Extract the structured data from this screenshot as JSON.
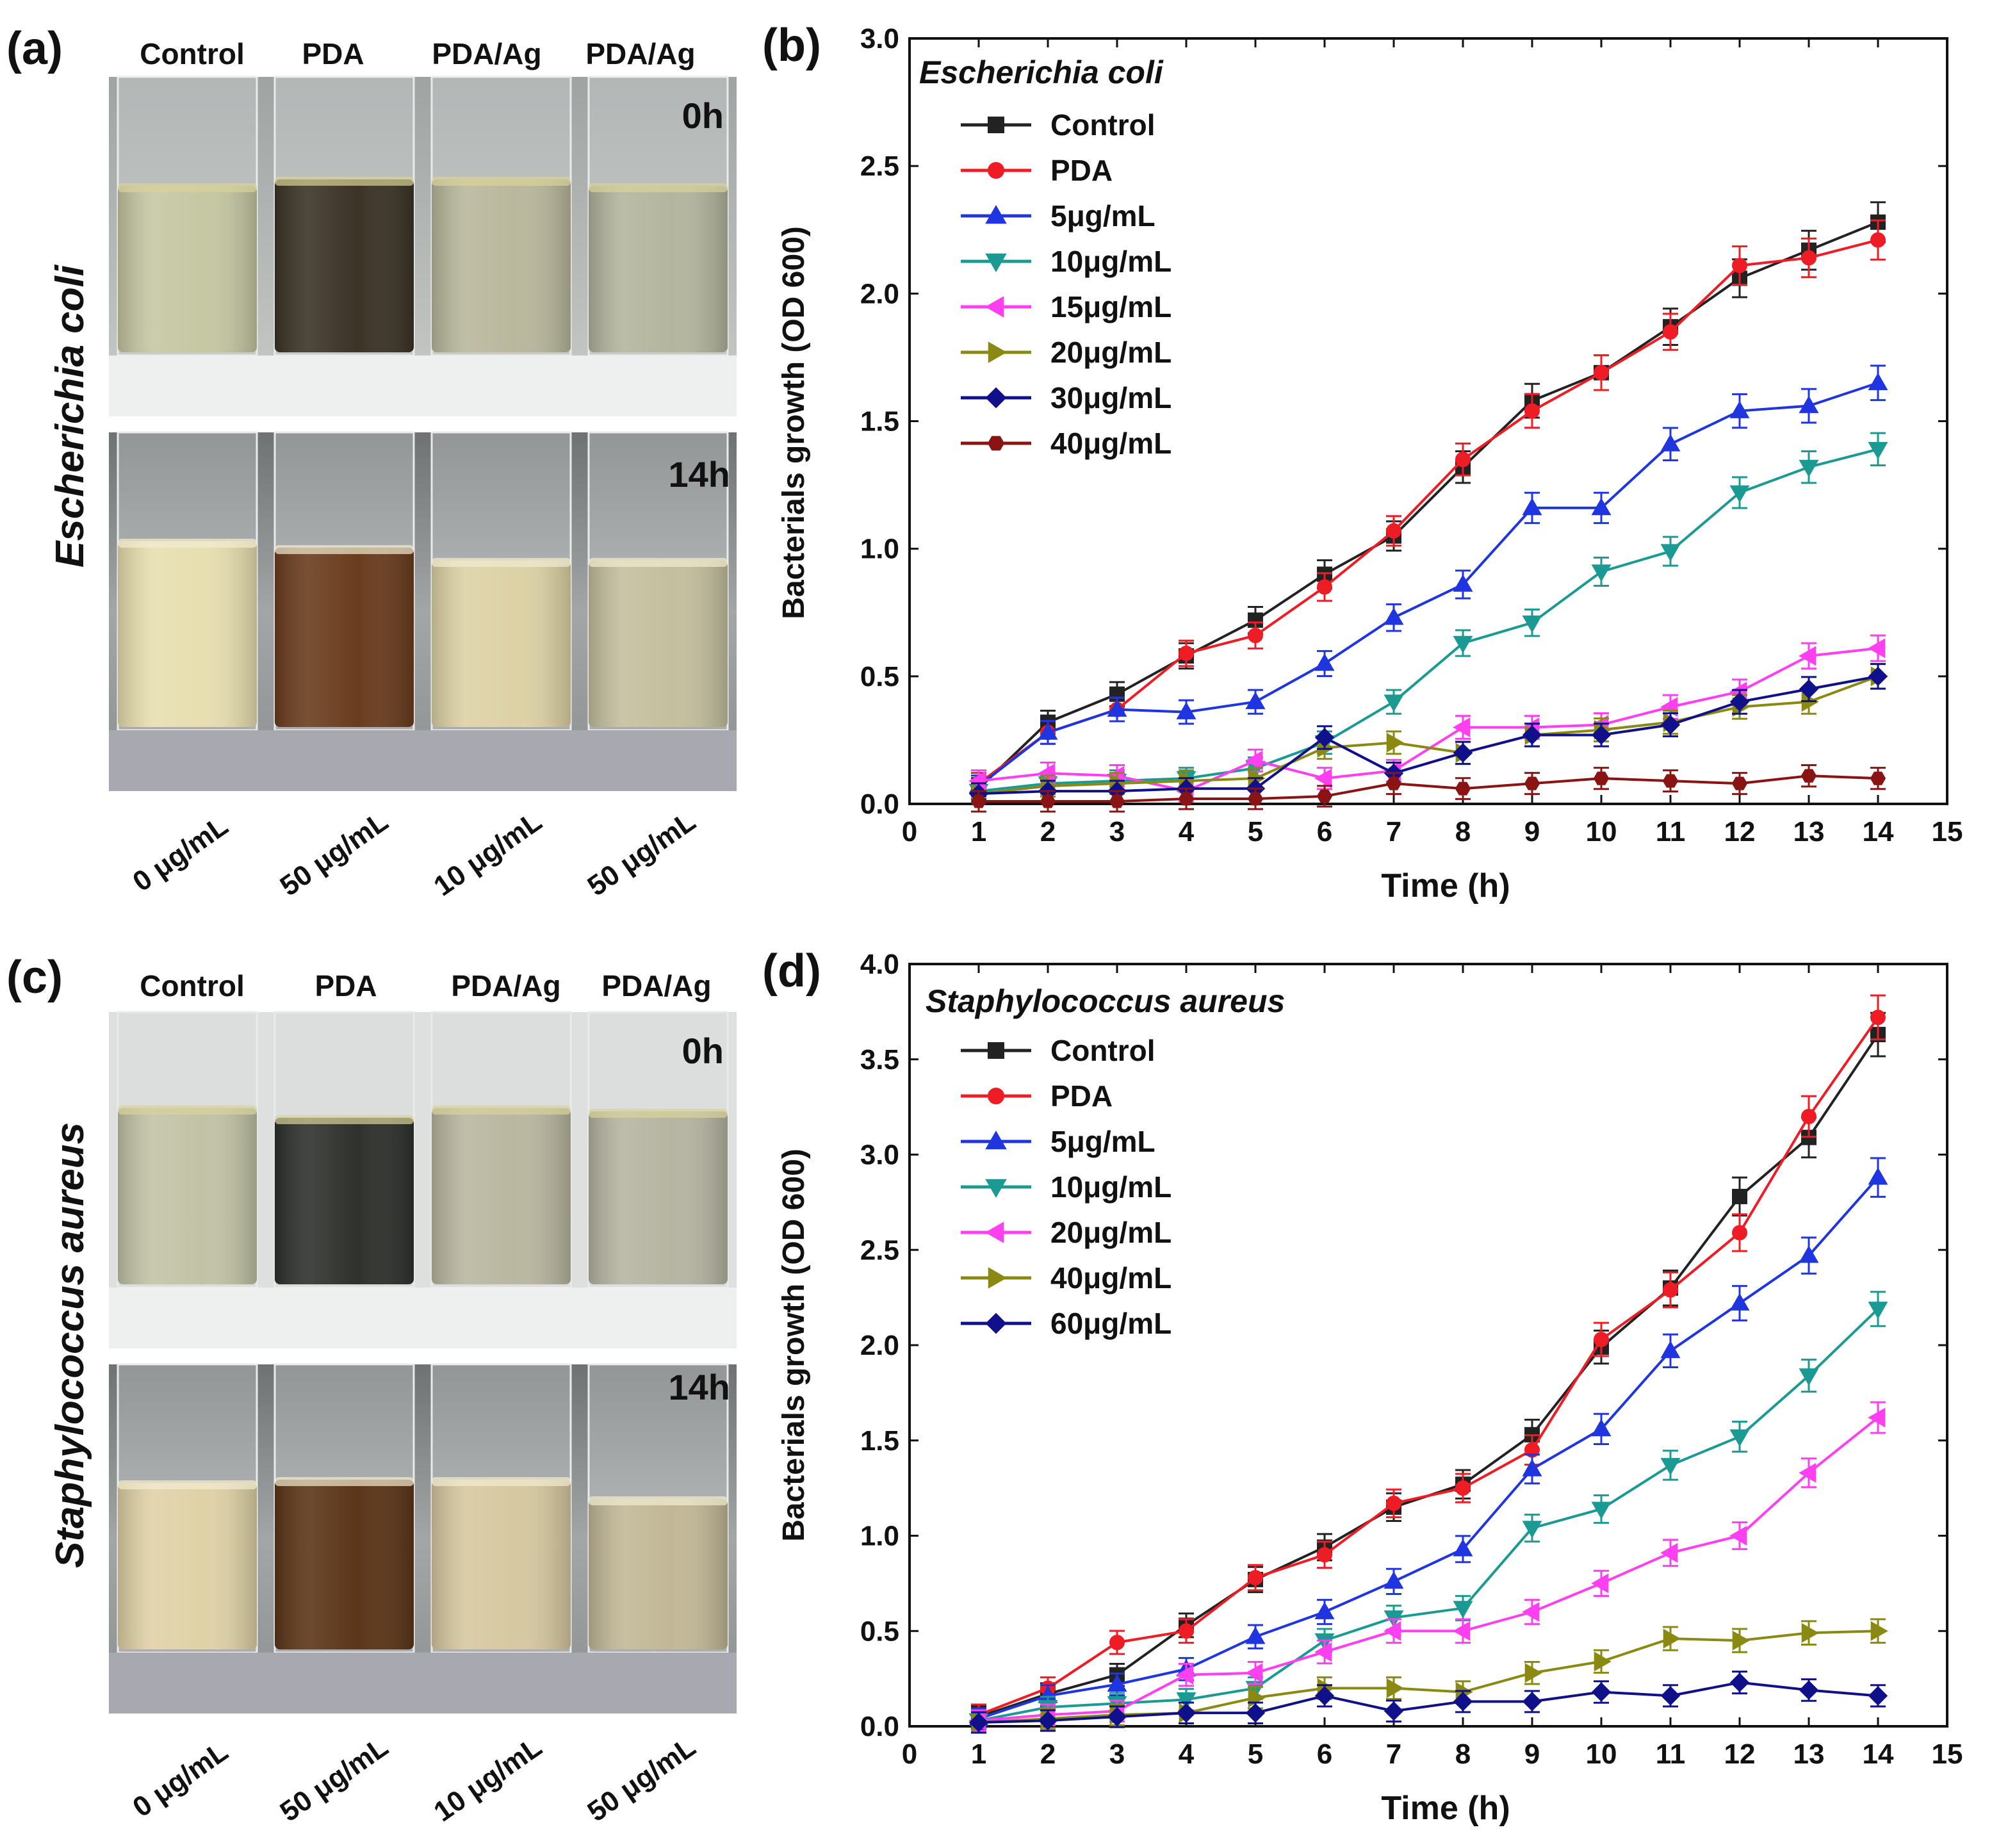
{
  "panel_a": {
    "label": "(a)",
    "organism": "Escherichia coli",
    "column_headers": [
      "Control",
      "PDA",
      "PDA/Ag",
      "PDA/Ag"
    ],
    "time_labels": [
      "0h",
      "14h"
    ],
    "concentrations": [
      "0 μg/mL",
      "50 μg/mL",
      "10 μg/mL",
      "50 μg/mL"
    ]
  },
  "panel_c": {
    "label": "(c)",
    "organism": "Staphylococcus aureus",
    "column_headers": [
      "Control",
      "PDA",
      "PDA/Ag",
      "PDA/Ag"
    ],
    "time_labels": [
      "0h",
      "14h"
    ],
    "concentrations": [
      "0 μg/mL",
      "50 μg/mL",
      "10 μg/mL",
      "50 μg/mL"
    ]
  },
  "photo_colors": {
    "e_coli_0h": [
      "#c6c7a3",
      "#3b3326",
      "#b9b89d",
      "#b3b59e"
    ],
    "e_coli_14h": [
      "#e7dfb0",
      "#6a3c1e",
      "#ddd2a6",
      "#c4bf9e"
    ],
    "s_aureus_0h": [
      "#c2c3a6",
      "#2f312d",
      "#b9b7a0",
      "#b6b5a2"
    ],
    "s_aureus_14h": [
      "#e0d2a7",
      "#5b3518",
      "#d6c8a0",
      "#c2b897"
    ]
  },
  "chart_data": [
    {
      "panel": "(b)",
      "type": "line",
      "title": "Escherichia coli",
      "xlabel": "Time (h)",
      "ylabel": "Bacterials growth (OD 600)",
      "xlim": [
        0,
        15
      ],
      "ylim": [
        0,
        3.0
      ],
      "x_ticks": [
        "0",
        "1",
        "2",
        "3",
        "4",
        "5",
        "6",
        "7",
        "8",
        "9",
        "10",
        "11",
        "12",
        "13",
        "14",
        "15"
      ],
      "y_ticks": [
        "0.0",
        "0.5",
        "1.0",
        "1.5",
        "2.0",
        "2.5",
        "3.0"
      ],
      "x": [
        1,
        2,
        3,
        4,
        5,
        6,
        7,
        8,
        9,
        10,
        11,
        12,
        13,
        14
      ],
      "series": [
        {
          "name": "Control",
          "color": "#222222",
          "marker": "square",
          "values": [
            0.06,
            0.32,
            0.43,
            0.58,
            0.72,
            0.9,
            1.05,
            1.32,
            1.58,
            1.69,
            1.87,
            2.06,
            2.17,
            2.28
          ]
        },
        {
          "name": "PDA",
          "color": "#ee1c24",
          "marker": "circle",
          "values": [
            0.08,
            0.28,
            0.37,
            0.59,
            0.66,
            0.85,
            1.07,
            1.35,
            1.54,
            1.69,
            1.85,
            2.11,
            2.14,
            2.21
          ]
        },
        {
          "name": "5μg/mL",
          "color": "#1f35e0",
          "marker": "triangle-up",
          "values": [
            0.07,
            0.28,
            0.37,
            0.36,
            0.4,
            0.55,
            0.73,
            0.86,
            1.16,
            1.16,
            1.41,
            1.54,
            1.56,
            1.65
          ]
        },
        {
          "name": "10μg/mL",
          "color": "#1a9a93",
          "marker": "triangle-down",
          "values": [
            0.05,
            0.08,
            0.09,
            0.1,
            0.14,
            0.24,
            0.4,
            0.63,
            0.71,
            0.91,
            0.99,
            1.22,
            1.32,
            1.39
          ]
        },
        {
          "name": "15μg/mL",
          "color": "#ff3ff0",
          "marker": "triangle-left",
          "values": [
            0.09,
            0.12,
            0.11,
            0.05,
            0.17,
            0.1,
            0.13,
            0.3,
            0.3,
            0.31,
            0.38,
            0.44,
            0.58,
            0.61
          ]
        },
        {
          "name": "20μg/mL",
          "color": "#8a8a12",
          "marker": "triangle-right",
          "values": [
            0.04,
            0.07,
            0.08,
            0.09,
            0.1,
            0.22,
            0.24,
            0.2,
            0.27,
            0.29,
            0.32,
            0.38,
            0.4,
            0.5
          ]
        },
        {
          "name": "30μg/mL",
          "color": "#10108a",
          "marker": "diamond",
          "values": [
            0.04,
            0.05,
            0.05,
            0.06,
            0.06,
            0.26,
            0.12,
            0.2,
            0.27,
            0.27,
            0.31,
            0.4,
            0.45,
            0.5
          ]
        },
        {
          "name": "40μg/mL",
          "color": "#8a1414",
          "marker": "hexagon",
          "values": [
            0.01,
            0.01,
            0.01,
            0.02,
            0.02,
            0.03,
            0.08,
            0.06,
            0.08,
            0.1,
            0.09,
            0.08,
            0.11,
            0.1
          ]
        }
      ]
    },
    {
      "panel": "(d)",
      "type": "line",
      "title": "Staphylococcus aureus",
      "xlabel": "Time (h)",
      "ylabel": "Bacterials growth (OD 600)",
      "xlim": [
        0,
        15
      ],
      "ylim": [
        0,
        4.0
      ],
      "x_ticks": [
        "0",
        "1",
        "2",
        "3",
        "4",
        "5",
        "6",
        "7",
        "8",
        "9",
        "10",
        "11",
        "12",
        "13",
        "14",
        "15"
      ],
      "y_ticks": [
        "0.0",
        "0.5",
        "1.0",
        "1.5",
        "2.0",
        "2.5",
        "3.0",
        "3.5",
        "4.0"
      ],
      "x": [
        1,
        2,
        3,
        4,
        5,
        6,
        7,
        8,
        9,
        10,
        11,
        12,
        13,
        14
      ],
      "series": [
        {
          "name": "Control",
          "color": "#222222",
          "marker": "square",
          "values": [
            0.05,
            0.17,
            0.27,
            0.53,
            0.77,
            0.94,
            1.15,
            1.27,
            1.53,
            1.99,
            2.3,
            2.78,
            3.09,
            3.63
          ]
        },
        {
          "name": "PDA",
          "color": "#ee1c24",
          "marker": "circle",
          "values": [
            0.06,
            0.2,
            0.44,
            0.5,
            0.78,
            0.9,
            1.17,
            1.25,
            1.45,
            2.03,
            2.29,
            2.59,
            3.2,
            3.72
          ]
        },
        {
          "name": "5μg/mL",
          "color": "#1f35e0",
          "marker": "triangle-up",
          "values": [
            0.04,
            0.16,
            0.22,
            0.3,
            0.47,
            0.6,
            0.76,
            0.93,
            1.35,
            1.56,
            1.97,
            2.22,
            2.47,
            2.88
          ]
        },
        {
          "name": "10μg/mL",
          "color": "#1a9a93",
          "marker": "triangle-down",
          "values": [
            0.03,
            0.1,
            0.12,
            0.14,
            0.2,
            0.45,
            0.57,
            0.62,
            1.04,
            1.14,
            1.37,
            1.52,
            1.84,
            2.19
          ]
        },
        {
          "name": "20μg/mL",
          "color": "#ff3ff0",
          "marker": "triangle-left",
          "values": [
            0.03,
            0.06,
            0.08,
            0.27,
            0.28,
            0.39,
            0.5,
            0.5,
            0.6,
            0.75,
            0.91,
            1.0,
            1.33,
            1.62
          ]
        },
        {
          "name": "40μg/mL",
          "color": "#8a8a12",
          "marker": "triangle-right",
          "values": [
            0.02,
            0.04,
            0.06,
            0.07,
            0.15,
            0.2,
            0.2,
            0.18,
            0.28,
            0.34,
            0.46,
            0.45,
            0.49,
            0.5
          ]
        },
        {
          "name": "60μg/mL",
          "color": "#10108a",
          "marker": "diamond",
          "values": [
            0.02,
            0.03,
            0.05,
            0.07,
            0.07,
            0.16,
            0.08,
            0.13,
            0.13,
            0.18,
            0.16,
            0.23,
            0.19,
            0.16
          ]
        }
      ]
    }
  ]
}
